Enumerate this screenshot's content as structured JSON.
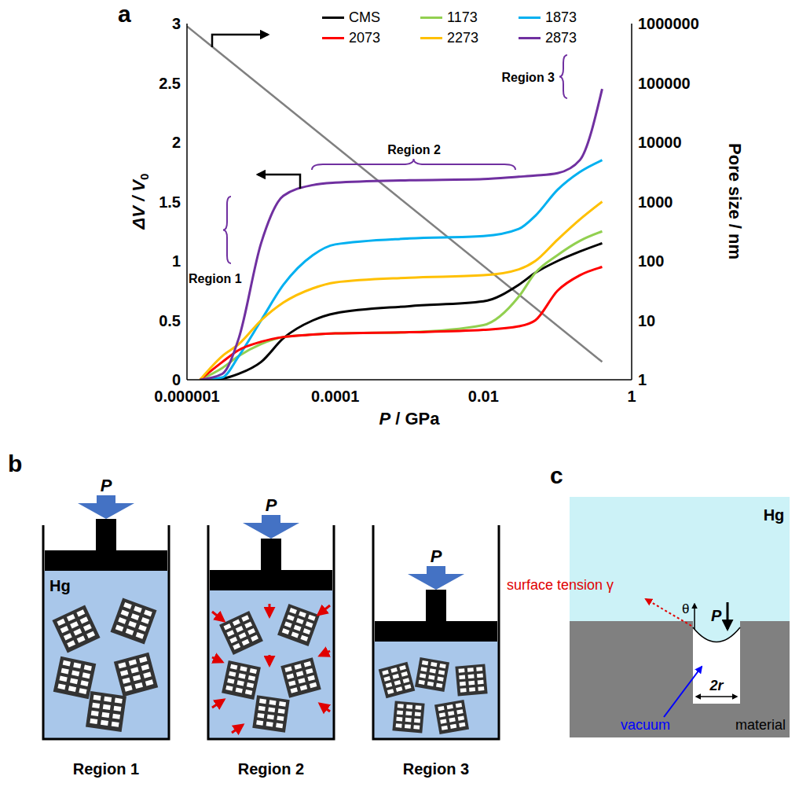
{
  "chart_data": {
    "type": "line",
    "panel_label": "a",
    "xlabel": "P / GPa",
    "ylabel": "ΔV / V0",
    "y2label": "Pore size / nm",
    "log": [
      "x",
      "y2"
    ],
    "xlim": [
      1e-06,
      1
    ],
    "xticks": [
      1e-06,
      0.0001,
      0.01,
      1
    ],
    "ylim": [
      0,
      3
    ],
    "yticks": [
      0,
      0.5,
      1,
      1.5,
      2,
      2.5,
      3
    ],
    "y2lim": [
      1,
      1000000
    ],
    "y2ticks": [
      1,
      10,
      100,
      1000,
      10000,
      100000,
      1000000
    ],
    "legend": "top",
    "x": [
      1.5e-06,
      3e-06,
      5e-06,
      1e-05,
      2e-05,
      5e-05,
      0.0001,
      0.001,
      0.01,
      0.03,
      0.05,
      0.1,
      0.2,
      0.4
    ],
    "series": [
      {
        "name": "CMS",
        "color": "#000000",
        "values": [
          0,
          0.01,
          0.05,
          0.15,
          0.35,
          0.5,
          0.56,
          0.62,
          0.66,
          0.8,
          0.9,
          1.0,
          1.08,
          1.15
        ]
      },
      {
        "name": "1173",
        "color": "#92d050",
        "values": [
          0,
          0.1,
          0.2,
          0.3,
          0.36,
          0.38,
          0.39,
          0.4,
          0.46,
          0.7,
          0.9,
          1.05,
          1.17,
          1.25
        ]
      },
      {
        "name": "1873",
        "color": "#00b0f0",
        "values": [
          0,
          0.02,
          0.2,
          0.5,
          0.8,
          1.05,
          1.14,
          1.19,
          1.21,
          1.27,
          1.38,
          1.6,
          1.75,
          1.85
        ]
      },
      {
        "name": "2073",
        "color": "#ff0000",
        "values": [
          0,
          0.15,
          0.25,
          0.32,
          0.36,
          0.38,
          0.39,
          0.4,
          0.42,
          0.45,
          0.5,
          0.75,
          0.88,
          0.95
        ]
      },
      {
        "name": "2273",
        "color": "#ffc000",
        "values": [
          0,
          0.2,
          0.3,
          0.5,
          0.65,
          0.77,
          0.82,
          0.86,
          0.88,
          0.93,
          1.0,
          1.18,
          1.35,
          1.5
        ]
      },
      {
        "name": "2873",
        "color": "#7030a0",
        "values": [
          0,
          0.05,
          0.35,
          1.15,
          1.55,
          1.64,
          1.66,
          1.68,
          1.69,
          1.71,
          1.72,
          1.74,
          1.85,
          2.45
        ]
      },
      {
        "axis": "y2",
        "color": "#808080",
        "x": [
          1e-06,
          0.4
        ],
        "values": [
          900000,
          2
        ]
      }
    ],
    "annotations": [
      "Region 1",
      "Region 2",
      "Region 3"
    ]
  },
  "diagrams": {
    "b": {
      "panel_label": "b",
      "pressure_label": "P",
      "fluid_label": "Hg",
      "regions": [
        "Region 1",
        "Region 2",
        "Region 3"
      ]
    },
    "c": {
      "panel_label": "c",
      "fluid_label": "Hg",
      "pressure_label": "P",
      "surface_tension_label": "surface tension γ",
      "angle_label": "θ",
      "width_label": "2r",
      "vacuum_label": "vacuum",
      "material_label": "material"
    }
  }
}
